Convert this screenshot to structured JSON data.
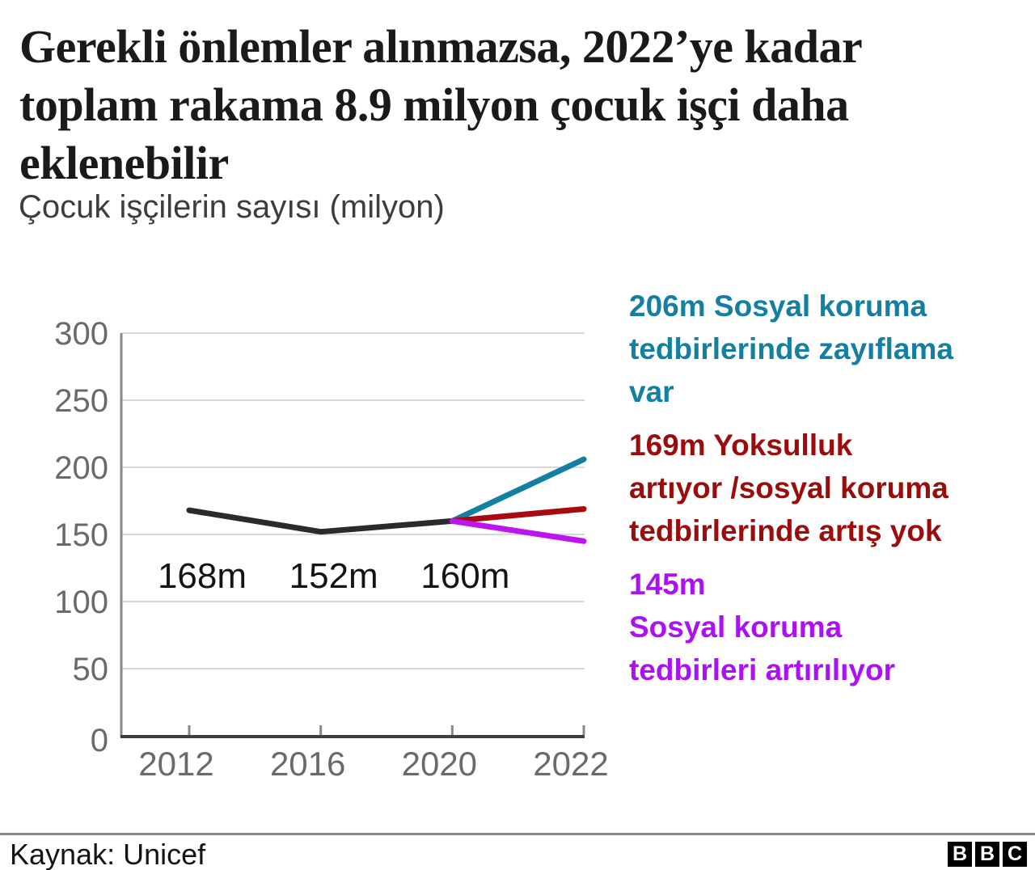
{
  "header": {
    "title_lines": [
      "Gerekli önlemler alınmazsa, 2022’ye kadar",
      "toplam rakama 8.9 milyon çocuk işçi daha",
      "eklenebilir"
    ],
    "subtitle": "Çocuk işçilerin sayısı (milyon)"
  },
  "chart_data": {
    "type": "line",
    "x": [
      2012,
      2016,
      2020,
      2022
    ],
    "x_tick_labels": [
      "2012",
      "2016",
      "2020",
      "2022"
    ],
    "ylim": [
      0,
      300
    ],
    "y_ticks": [
      0,
      50,
      100,
      150,
      200,
      250,
      300
    ],
    "grid": true,
    "grid_color": "#d8d8d8",
    "axis_color": "#3f3f3f",
    "tick_color": "#87878c",
    "tick_label_color": "#6a6a6e",
    "point_label_color": "#141414",
    "series": [
      {
        "name": "gerceklesen",
        "color": "#2b2b2b",
        "x": [
          2012,
          2016,
          2020
        ],
        "values": [
          168,
          152,
          160
        ]
      },
      {
        "name": "sosyal-koruma-zayiflama",
        "color": "#1380A1",
        "x": [
          2020,
          2022
        ],
        "values": [
          160,
          206
        ]
      },
      {
        "name": "yoksulluk-artiyor-koruma-artis-yok",
        "color": "#A80A10",
        "x": [
          2020,
          2022
        ],
        "values": [
          160,
          169
        ]
      },
      {
        "name": "sosyal-koruma-artiriliyor",
        "color": "#BE14F0",
        "x": [
          2020,
          2022
        ],
        "values": [
          160,
          145
        ]
      }
    ],
    "point_labels": [
      {
        "x": 2012,
        "text": "168m"
      },
      {
        "x": 2016,
        "text": "152m"
      },
      {
        "x": 2020,
        "text": "160m"
      }
    ]
  },
  "legend": {
    "items": [
      {
        "name": "sosyal-koruma-zayiflama",
        "color": "#1380A1",
        "lines": [
          "206m Sosyal koruma",
          "tedbirlerinde zayıflama",
          "var"
        ]
      },
      {
        "name": "yoksulluk-artiyor-koruma-artis-yok",
        "color": "#9B0D0B",
        "lines": [
          "169m Yoksulluk",
          "artıyor /sosyal koruma",
          "tedbirlerinde artış yok"
        ]
      },
      {
        "name": "sosyal-koruma-artiriliyor",
        "color": "#AC11F2",
        "lines": [
          "145m",
          "Sosyal koruma",
          "tedbirleri artırılıyor"
        ]
      }
    ]
  },
  "footer": {
    "source": "Kaynak: Unicef",
    "logo_letters": [
      "B",
      "B",
      "C"
    ]
  }
}
